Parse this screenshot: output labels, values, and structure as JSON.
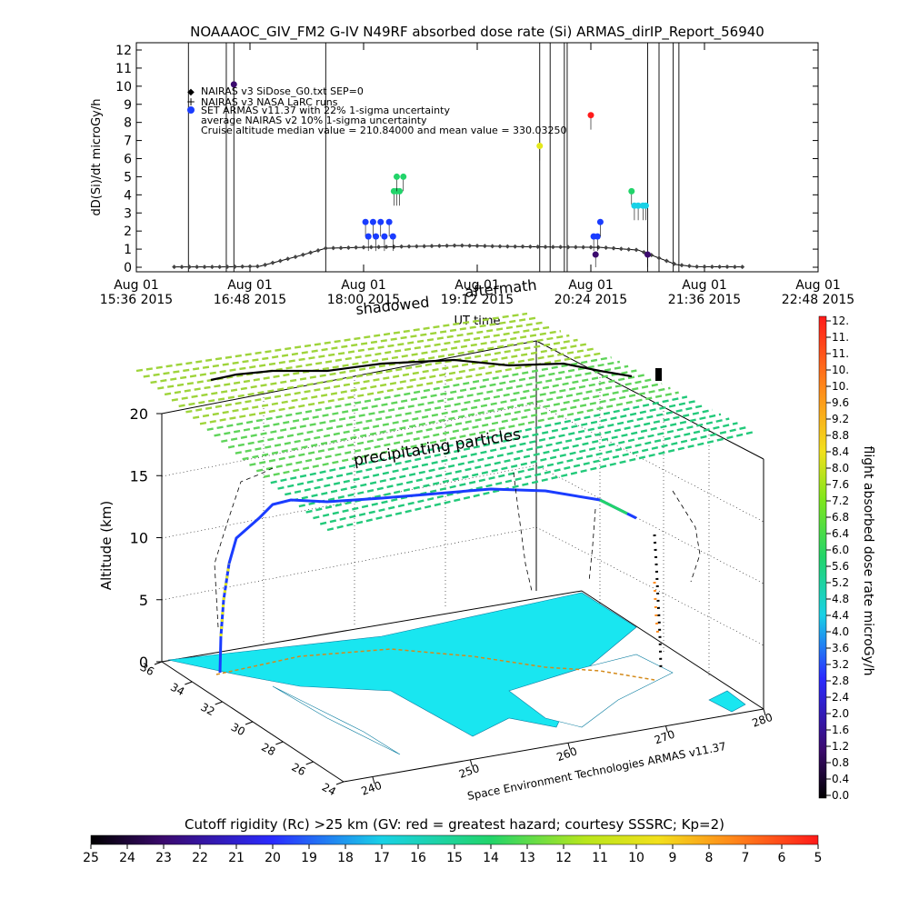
{
  "header": {
    "title": "NOAAAOC_GIV_FM2 G-IV   N49RF  absorbed dose rate (Si) ARMAS_dirIP_Report_56940"
  },
  "chart_data": [
    {
      "type": "scatter",
      "ylabel": "dD(Si)/dt microGy/h",
      "xlabel": "UT time",
      "ylim": [
        0,
        12
      ],
      "y_ticks": [
        "0",
        "1",
        "2",
        "3",
        "4",
        "5",
        "6",
        "7",
        "8",
        "9",
        "10",
        "11",
        "12"
      ],
      "x_ticks": [
        {
          "line1": "Aug 01",
          "line2": "15:36 2015"
        },
        {
          "line1": "Aug 01",
          "line2": "16:48 2015"
        },
        {
          "line1": "Aug 01",
          "line2": "18:00 2015"
        },
        {
          "line1": "Aug 01",
          "line2": "19:12 2015"
        },
        {
          "line1": "Aug 01",
          "line2": "20:24 2015"
        },
        {
          "line1": "Aug 01",
          "line2": "21:36 2015"
        },
        {
          "line1": "Aug 01",
          "line2": "22:48 2015"
        }
      ],
      "x_range_hours": [
        15.6,
        22.8
      ],
      "legend": [
        {
          "marker": "◆",
          "text": "NAIRAS v3 SiDose_G0.txt SEP=0"
        },
        {
          "marker": "+",
          "text": "NAIRAS v3 NASA LaRC runs"
        },
        {
          "marker": "●",
          "color": "#1a3cff",
          "text": "SET ARMAS v11.37 with 22% 1-sigma uncertainty"
        },
        {
          "marker": "",
          "text": "average NAIRAS v2 10% 1-sigma uncertainty"
        },
        {
          "marker": "",
          "text": "Cruise altitude median value = 210.84000 and mean value = 330.03250"
        }
      ],
      "legend_placement": "top-left",
      "annotations": [
        "shadowed",
        "aftermath"
      ],
      "event_lines_hours": [
        16.15,
        16.55,
        16.63,
        17.6,
        19.86,
        19.97,
        20.12,
        20.15,
        21.0,
        21.12,
        21.27,
        21.33
      ],
      "model_series": {
        "name": "NAIRAS v3",
        "x_hours": [
          16.0,
          16.5,
          16.9,
          17.3,
          17.6,
          18.0,
          18.5,
          19.0,
          19.5,
          20.0,
          20.5,
          20.9,
          21.1,
          21.3,
          21.5,
          22.0
        ],
        "y": [
          0.02,
          0.02,
          0.05,
          0.6,
          1.05,
          1.1,
          1.15,
          1.2,
          1.15,
          1.12,
          1.1,
          0.95,
          0.55,
          0.15,
          0.03,
          0.02
        ]
      },
      "armas_points": [
        {
          "t": 16.63,
          "v": 10.1,
          "color": "#3b0a6e"
        },
        {
          "t": 18.02,
          "v": 2.5,
          "color": "#1a3cff"
        },
        {
          "t": 18.05,
          "v": 1.7,
          "color": "#1a3cff"
        },
        {
          "t": 18.1,
          "v": 2.5,
          "color": "#1a3cff"
        },
        {
          "t": 18.13,
          "v": 1.7,
          "color": "#1a3cff"
        },
        {
          "t": 18.18,
          "v": 2.5,
          "color": "#1a3cff"
        },
        {
          "t": 18.22,
          "v": 1.7,
          "color": "#1a3cff"
        },
        {
          "t": 18.27,
          "v": 2.5,
          "color": "#1a3cff"
        },
        {
          "t": 18.31,
          "v": 1.7,
          "color": "#1a3cff"
        },
        {
          "t": 18.32,
          "v": 4.2,
          "color": "#22d46a"
        },
        {
          "t": 18.35,
          "v": 4.2,
          "color": "#22d46a"
        },
        {
          "t": 18.38,
          "v": 4.2,
          "color": "#22d46a"
        },
        {
          "t": 18.35,
          "v": 5.0,
          "color": "#22d46a"
        },
        {
          "t": 18.42,
          "v": 5.0,
          "color": "#22d46a"
        },
        {
          "t": 19.86,
          "v": 6.7,
          "color": "#e4e81c"
        },
        {
          "t": 20.4,
          "v": 8.4,
          "color": "#ff1a1a"
        },
        {
          "t": 20.43,
          "v": 1.7,
          "color": "#1a3cff"
        },
        {
          "t": 20.47,
          "v": 1.7,
          "color": "#1a3cff"
        },
        {
          "t": 20.5,
          "v": 2.5,
          "color": "#1a3cff"
        },
        {
          "t": 20.45,
          "v": 0.7,
          "color": "#3b0a6e"
        },
        {
          "t": 20.83,
          "v": 4.2,
          "color": "#22d46a"
        },
        {
          "t": 20.86,
          "v": 3.4,
          "color": "#19d1e6"
        },
        {
          "t": 20.9,
          "v": 3.4,
          "color": "#19d1e6"
        },
        {
          "t": 20.95,
          "v": 3.4,
          "color": "#19d1e6"
        },
        {
          "t": 20.98,
          "v": 3.4,
          "color": "#19d1e6"
        },
        {
          "t": 21.0,
          "v": 0.7,
          "color": "#3b0a6e"
        }
      ]
    },
    {
      "type": "3d-trajectory",
      "ylabel": "Altitude (km)",
      "z_ticks": [
        "0",
        "5",
        "10",
        "15",
        "20"
      ],
      "lat_ticks": [
        "36",
        "34",
        "32",
        "30",
        "28",
        "26",
        "24"
      ],
      "lon_ticks": [
        "240",
        "250",
        "260",
        "270",
        "280"
      ],
      "annotation": "precipitating particles",
      "credit": "Space Environment Technologies ARMAS v11.37",
      "map_color": "#19e6f0"
    }
  ],
  "colorbar_right": {
    "label": "flight absorbed dose rate microGy/h",
    "ticks": [
      "12.",
      "11.",
      "11.",
      "10.",
      "10.",
      "9.6",
      "9.2",
      "8.8",
      "8.4",
      "8.0",
      "7.6",
      "7.2",
      "6.8",
      "6.4",
      "6.0",
      "5.6",
      "5.2",
      "4.8",
      "4.4",
      "4.0",
      "3.6",
      "3.2",
      "2.8",
      "2.4",
      "2.0",
      "1.6",
      "1.2",
      "0.8",
      "0.4",
      "0.0"
    ]
  },
  "colorbar_bottom": {
    "label": "Cutoff rigidity (Rc) >25 km (GV: red = greatest hazard; courtesy SSSRC; Kp=2)",
    "ticks": [
      "25",
      "24",
      "23",
      "22",
      "21",
      "20",
      "19",
      "18",
      "17",
      "16",
      "15",
      "14",
      "13",
      "12",
      "11",
      "10",
      "9",
      "8",
      "7",
      "6",
      "5"
    ]
  }
}
